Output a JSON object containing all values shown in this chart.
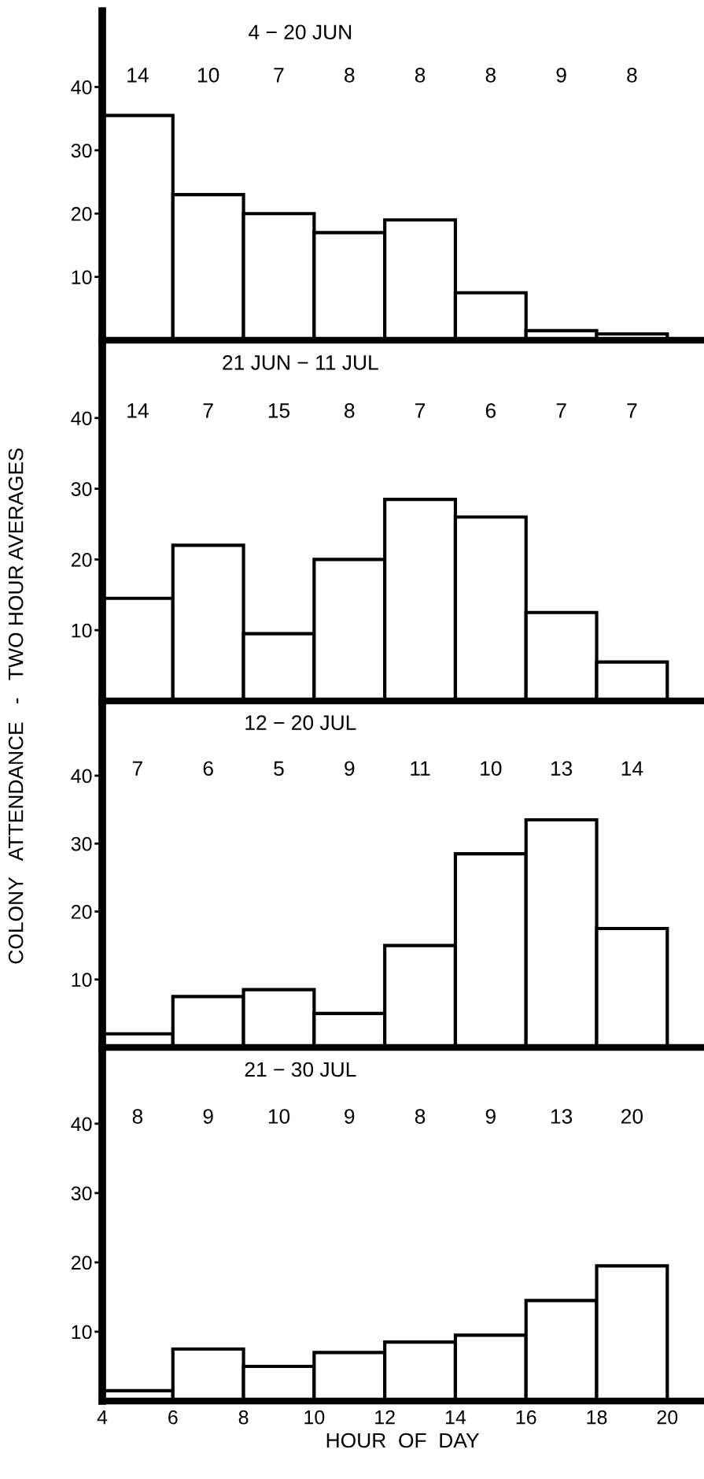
{
  "chart_data": [
    {
      "type": "histogram",
      "title": "4 − 20 JUN",
      "bins": [
        4,
        6,
        8,
        10,
        12,
        14,
        16,
        18,
        20
      ],
      "values": [
        35.5,
        23,
        20,
        17,
        19,
        7.5,
        1.5,
        1
      ],
      "color": "#ffffff",
      "xlim": [
        4,
        21
      ],
      "xticks": [
        4,
        6,
        8,
        10,
        12,
        14,
        16,
        18,
        20
      ],
      "ylim": [
        0,
        52
      ],
      "yticks": [
        10,
        20,
        30,
        40
      ],
      "tick_labels": "y",
      "grid": false,
      "annotations": [
        "14",
        "10",
        "7",
        "8",
        "8",
        "8",
        "9",
        "8"
      ]
    },
    {
      "type": "histogram",
      "title": "21 JUN − 11 JUL",
      "bins": [
        4,
        6,
        8,
        10,
        12,
        14,
        16,
        18,
        20
      ],
      "values": [
        14.5,
        22,
        9.5,
        20,
        28.5,
        26,
        12.5,
        5.5
      ],
      "color": "#ffffff",
      "xlim": [
        4,
        21
      ],
      "xticks": [
        4,
        6,
        8,
        10,
        12,
        14,
        16,
        18,
        20
      ],
      "ylim": [
        0,
        51
      ],
      "yticks": [
        10,
        20,
        30,
        40
      ],
      "tick_labels": "y",
      "grid": false,
      "annotations": [
        "14",
        "7",
        "15",
        "8",
        "7",
        "6",
        "7",
        "7"
      ]
    },
    {
      "type": "histogram",
      "title": "12 − 20 JUL",
      "bins": [
        4,
        6,
        8,
        10,
        12,
        14,
        16,
        18,
        20
      ],
      "values": [
        2,
        7.5,
        8.5,
        5,
        15,
        28.5,
        33.5,
        17.5
      ],
      "color": "#ffffff",
      "xlim": [
        4,
        21
      ],
      "xticks": [
        4,
        6,
        8,
        10,
        12,
        14,
        16,
        18,
        20
      ],
      "ylim": [
        0,
        51
      ],
      "yticks": [
        10,
        20,
        30,
        40
      ],
      "tick_labels": "y",
      "grid": false,
      "annotations": [
        "7",
        "6",
        "5",
        "9",
        "11",
        "10",
        "13",
        "14"
      ]
    },
    {
      "type": "histogram",
      "title": "21 − 30 JUL",
      "xlabel": "HOUR  OF  DAY",
      "bins": [
        4,
        6,
        8,
        10,
        12,
        14,
        16,
        18,
        20
      ],
      "values": [
        1.5,
        7.5,
        5,
        7,
        8.5,
        9.5,
        14.5,
        19.5
      ],
      "color": "#ffffff",
      "xlim": [
        4,
        21
      ],
      "xticks": [
        4,
        6,
        8,
        10,
        12,
        14,
        16,
        18,
        20
      ],
      "ylim": [
        0,
        51
      ],
      "yticks": [
        10,
        20,
        30,
        40
      ],
      "grid": false,
      "annotations": [
        "8",
        "9",
        "10",
        "9",
        "8",
        "9",
        "13",
        "20"
      ]
    },
    {
      "type": "other",
      "annotations": [
        "COLONY   ATTENDANCE   -   TWO HOUR AVERAGES"
      ]
    }
  ]
}
